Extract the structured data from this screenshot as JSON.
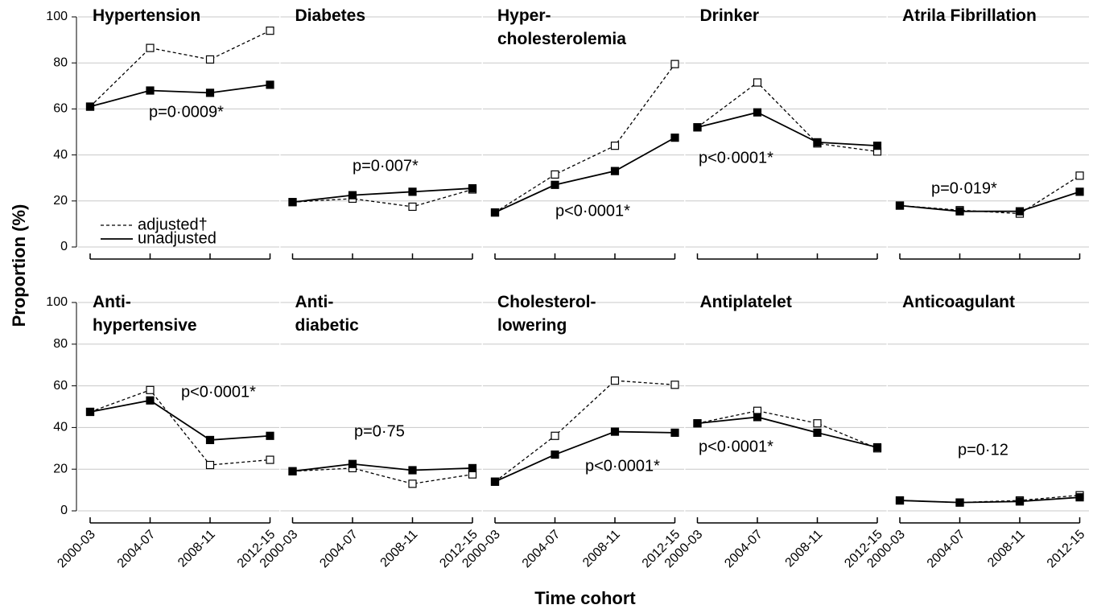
{
  "ylabel": "Proportion (%)",
  "xlabel": "Time cohort",
  "chart_data": [
    {
      "type": "line",
      "title": "Hypertension",
      "annotation": "p=0·0009*",
      "categories": [
        null,
        null,
        null,
        null
      ],
      "ylim": [
        0,
        100
      ],
      "yticks": [
        0,
        20,
        40,
        60,
        80,
        100
      ],
      "grid": true,
      "legend": "lower left",
      "series": [
        {
          "name": "adjusted†",
          "color": "#000000",
          "dashed": true,
          "values": [
            61,
            86.5,
            81.5,
            94
          ]
        },
        {
          "name": "unadjusted",
          "color": "#000000",
          "dashed": false,
          "values": [
            61,
            68,
            67,
            70.5
          ]
        }
      ]
    },
    {
      "type": "line",
      "title": "Diabetes",
      "annotation": "p=0·007*",
      "categories": [
        null,
        null,
        null,
        null
      ],
      "ylim": [
        0,
        100
      ],
      "yticks": [
        0,
        20,
        40,
        60,
        80,
        100
      ],
      "grid": true,
      "series": [
        {
          "color": "#000000",
          "dashed": true,
          "values": [
            19.5,
            21,
            17.5,
            25
          ]
        },
        {
          "color": "#000000",
          "dashed": false,
          "values": [
            19.5,
            22.5,
            24,
            25.5
          ]
        }
      ]
    },
    {
      "type": "line",
      "title": "Hyper-\ncholesterolemia",
      "annotation": "p<0·0001*",
      "categories": [
        null,
        null,
        null,
        null
      ],
      "ylim": [
        0,
        100
      ],
      "yticks": [
        0,
        20,
        40,
        60,
        80,
        100
      ],
      "grid": true,
      "series": [
        {
          "color": "#000000",
          "dashed": true,
          "values": [
            15,
            31.5,
            44,
            79.5
          ]
        },
        {
          "color": "#000000",
          "dashed": false,
          "values": [
            15,
            27,
            33,
            47.5
          ]
        }
      ]
    },
    {
      "type": "line",
      "title": "Drinker",
      "annotation": "p<0·0001*",
      "categories": [
        null,
        null,
        null,
        null
      ],
      "ylim": [
        0,
        100
      ],
      "yticks": [
        0,
        20,
        40,
        60,
        80,
        100
      ],
      "grid": true,
      "series": [
        {
          "color": "#000000",
          "dashed": true,
          "values": [
            52,
            71.5,
            45,
            41.5
          ]
        },
        {
          "color": "#000000",
          "dashed": false,
          "values": [
            52,
            58.5,
            45.5,
            44
          ]
        }
      ]
    },
    {
      "type": "line",
      "title": "Atrila Fibrillation",
      "annotation": "p=0·019*",
      "categories": [
        null,
        null,
        null,
        null
      ],
      "ylim": [
        0,
        100
      ],
      "yticks": [
        0,
        20,
        40,
        60,
        80,
        100
      ],
      "grid": true,
      "series": [
        {
          "color": "#000000",
          "dashed": true,
          "values": [
            18,
            16,
            14.5,
            31
          ]
        },
        {
          "color": "#000000",
          "dashed": false,
          "values": [
            18,
            15.5,
            15.5,
            24
          ]
        }
      ]
    },
    {
      "type": "line",
      "title": "Anti-\nhypertensive",
      "annotation": "p<0·0001*",
      "categories": [
        "2000-03",
        "2004-07",
        "2008-11",
        "2012-15"
      ],
      "ylim": [
        0,
        100
      ],
      "yticks": [
        0,
        20,
        40,
        60,
        80,
        100
      ],
      "grid": true,
      "series": [
        {
          "color": "#000000",
          "dashed": true,
          "values": [
            47.5,
            58,
            22,
            24.5
          ]
        },
        {
          "color": "#000000",
          "dashed": false,
          "values": [
            47.5,
            53,
            34,
            36
          ]
        }
      ]
    },
    {
      "type": "line",
      "title": "Anti-\ndiabetic",
      "annotation": "p=0·75",
      "categories": [
        "2000-03",
        "2004-07",
        "2008-11",
        "2012-15"
      ],
      "ylim": [
        0,
        100
      ],
      "yticks": [
        0,
        20,
        40,
        60,
        80,
        100
      ],
      "grid": true,
      "series": [
        {
          "color": "#000000",
          "dashed": true,
          "values": [
            19,
            20.5,
            13,
            17.5
          ]
        },
        {
          "color": "#000000",
          "dashed": false,
          "values": [
            19,
            22.5,
            19.5,
            20.5
          ]
        }
      ]
    },
    {
      "type": "line",
      "title": "Cholesterol-\nlowering",
      "annotation": "p<0·0001*",
      "categories": [
        "2000-03",
        "2004-07",
        "2008-11",
        "2012-15"
      ],
      "ylim": [
        0,
        100
      ],
      "yticks": [
        0,
        20,
        40,
        60,
        80,
        100
      ],
      "grid": true,
      "series": [
        {
          "color": "#000000",
          "dashed": true,
          "values": [
            14,
            36,
            62.5,
            60.5
          ]
        },
        {
          "color": "#000000",
          "dashed": false,
          "values": [
            14,
            27,
            38,
            37.5
          ]
        }
      ]
    },
    {
      "type": "line",
      "title": "Antiplatelet",
      "annotation": "p<0·0001*",
      "categories": [
        "2000-03",
        "2004-07",
        "2008-11",
        "2012-15"
      ],
      "ylim": [
        0,
        100
      ],
      "yticks": [
        0,
        20,
        40,
        60,
        80,
        100
      ],
      "grid": true,
      "series": [
        {
          "color": "#000000",
          "dashed": true,
          "values": [
            42,
            48,
            42,
            30
          ]
        },
        {
          "color": "#000000",
          "dashed": false,
          "values": [
            42,
            45,
            37.5,
            30.5
          ]
        }
      ]
    },
    {
      "type": "line",
      "title": "Anticoagulant",
      "annotation": "p=0·12",
      "categories": [
        "2000-03",
        "2004-07",
        "2008-11",
        "2012-15"
      ],
      "ylim": [
        0,
        100
      ],
      "yticks": [
        0,
        20,
        40,
        60,
        80,
        100
      ],
      "grid": true,
      "series": [
        {
          "color": "#000000",
          "dashed": true,
          "values": [
            5,
            4,
            5,
            7.5
          ]
        },
        {
          "color": "#000000",
          "dashed": false,
          "values": [
            5,
            4,
            4.5,
            6.5
          ]
        }
      ]
    }
  ]
}
